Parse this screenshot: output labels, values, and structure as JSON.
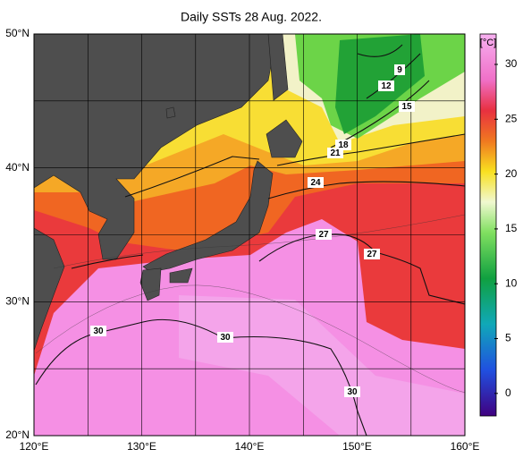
{
  "title": "Daily SSTs 28 Aug. 2022.",
  "colorbar": {
    "unit": "[°C]",
    "ticks": [
      30,
      25,
      20,
      15,
      10,
      5,
      0
    ]
  },
  "latitude_labels": [
    "50°N",
    "40°N",
    "30°N",
    "20°N"
  ],
  "longitude_labels": [
    "120°E",
    "130°E",
    "140°E",
    "150°E",
    "160°E"
  ],
  "contour_labels": [
    "9",
    "12",
    "15",
    "18",
    "21",
    "24",
    "27",
    "27",
    "30",
    "30",
    "30"
  ]
}
